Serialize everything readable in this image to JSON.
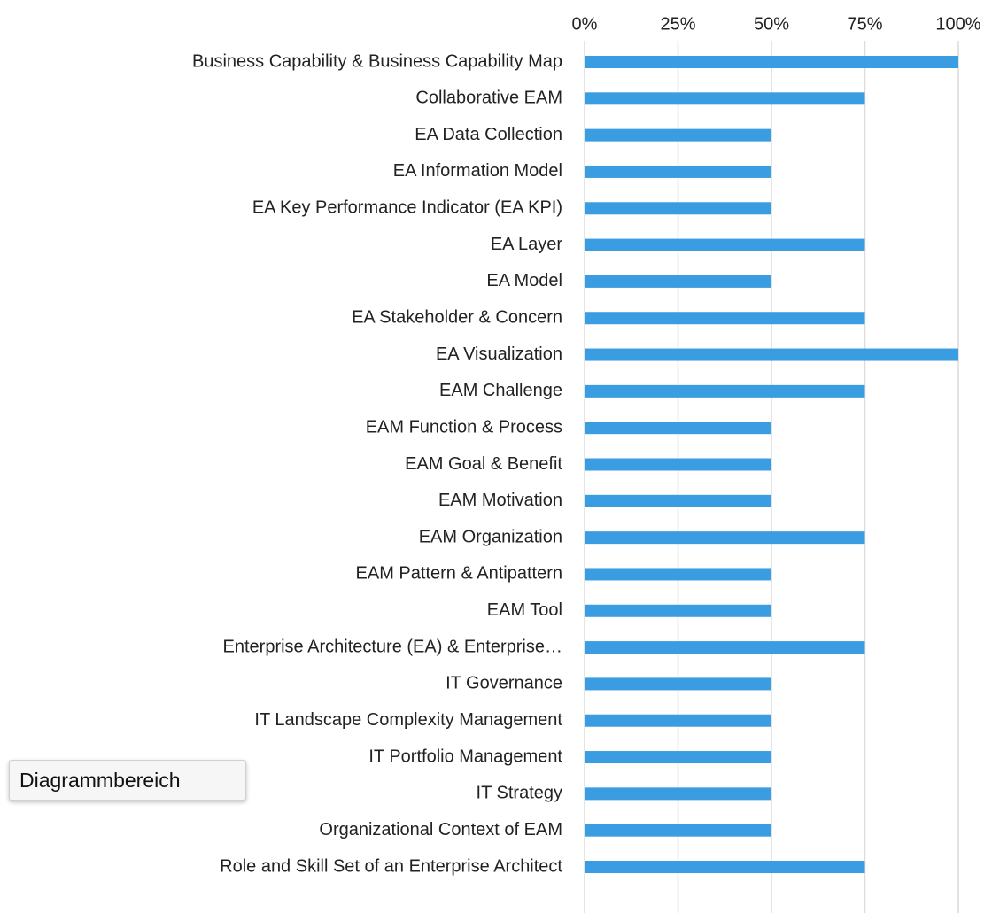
{
  "chart_data": {
    "type": "bar",
    "orientation": "horizontal",
    "categories": [
      "Business Capability & Business Capability Map",
      "Collaborative EAM",
      "EA Data Collection",
      "EA Information Model",
      "EA Key Performance Indicator (EA KPI)",
      "EA Layer",
      "EA Model",
      "EA Stakeholder & Concern",
      "EA Visualization",
      "EAM Challenge",
      "EAM Function & Process",
      "EAM Goal & Benefit",
      "EAM Motivation",
      "EAM Organization",
      "EAM Pattern & Antipattern",
      "EAM Tool",
      "Enterprise Architecture (EA) & Enterprise…",
      "IT Governance",
      "IT Landscape Complexity Management",
      "IT Portfolio Management",
      "IT Strategy",
      "Organizational Context of EAM",
      "Role and Skill Set of an Enterprise Architect"
    ],
    "values": [
      100,
      75,
      50,
      50,
      50,
      75,
      50,
      75,
      100,
      75,
      50,
      50,
      50,
      75,
      50,
      50,
      75,
      50,
      50,
      50,
      50,
      50,
      75
    ],
    "color": "#3b9de1",
    "xlim": [
      0,
      100
    ],
    "xticks": [
      {
        "value": 0,
        "label": "0%"
      },
      {
        "value": 25,
        "label": "25%"
      },
      {
        "value": 50,
        "label": "50%"
      },
      {
        "value": 75,
        "label": "75%"
      },
      {
        "value": 100,
        "label": "100%"
      }
    ],
    "grid": true
  },
  "tooltip": "Diagrammbereich"
}
